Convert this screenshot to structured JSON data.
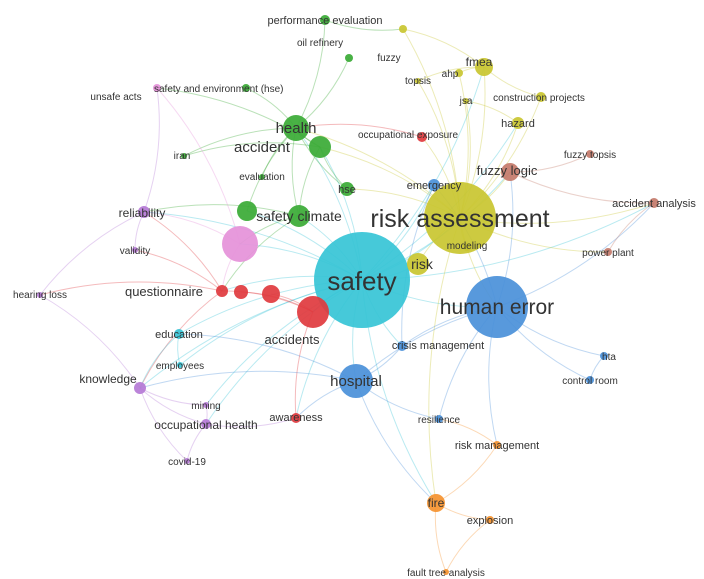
{
  "cluster_colors": {
    "cyan": "#36c4d6",
    "yellow": "#c9c630",
    "blue": "#4a90d9",
    "green": "#3aaa35",
    "red": "#e0393e",
    "purple": "#b57ad6",
    "orange": "#f5922f",
    "brown": "#c47a6a",
    "pink": "#e591d9"
  },
  "nodes": [
    {
      "id": "safety",
      "label": "safety",
      "cluster": "cyan",
      "weight": 10
    },
    {
      "id": "risk-assessment",
      "label": "risk assessment",
      "cluster": "yellow",
      "weight": 8
    },
    {
      "id": "human-error",
      "label": "human error",
      "cluster": "blue",
      "weight": 7
    },
    {
      "id": "hospital",
      "label": "hospital",
      "cluster": "blue",
      "weight": 4
    },
    {
      "id": "risk",
      "label": "risk",
      "cluster": "yellow",
      "weight": 3
    },
    {
      "id": "health",
      "label": "health",
      "cluster": "green",
      "weight": 3
    },
    {
      "id": "accident",
      "label": "accident",
      "cluster": "green",
      "weight": 3
    },
    {
      "id": "safety-climate",
      "label": "safety climate",
      "cluster": "green",
      "weight": 3
    },
    {
      "id": "accidents",
      "label": "accidents",
      "cluster": "red",
      "weight": 3
    },
    {
      "id": "fuzzy-logic",
      "label": "fuzzy logic",
      "cluster": "brown",
      "weight": 2
    },
    {
      "id": "fmea",
      "label": "fmea",
      "cluster": "yellow",
      "weight": 2
    },
    {
      "id": "fire",
      "label": "fire",
      "cluster": "orange",
      "weight": 2
    },
    {
      "id": "questionnaire",
      "label": "questionnaire",
      "cluster": "red",
      "weight": 2
    },
    {
      "id": "reliability",
      "label": "reliability",
      "cluster": "purple",
      "weight": 2
    },
    {
      "id": "knowledge",
      "label": "knowledge",
      "cluster": "purple",
      "weight": 2
    },
    {
      "id": "emergency",
      "label": "emergency",
      "cluster": "blue",
      "weight": 2
    },
    {
      "id": "hazard",
      "label": "hazard",
      "cluster": "yellow",
      "weight": 2
    },
    {
      "id": "occupational-health",
      "label": "occupational health",
      "cluster": "purple",
      "weight": 2
    },
    {
      "id": "education",
      "label": "education",
      "cluster": "cyan",
      "weight": 2
    },
    {
      "id": "crisis-management",
      "label": "crisis management",
      "cluster": "blue",
      "weight": 2
    },
    {
      "id": "accident-analysis",
      "label": "accident analysis",
      "cluster": "brown",
      "weight": 2
    },
    {
      "id": "performance-evaluation",
      "label": "performance evaluation",
      "cluster": "green",
      "weight": 1
    },
    {
      "id": "oil-refinery",
      "label": "oil refinery",
      "cluster": "green",
      "weight": 1
    },
    {
      "id": "fuzzy",
      "label": "fuzzy",
      "cluster": "yellow",
      "weight": 1
    },
    {
      "id": "topsis",
      "label": "topsis",
      "cluster": "yellow",
      "weight": 1
    },
    {
      "id": "ahp",
      "label": "ahp",
      "cluster": "yellow",
      "weight": 1
    },
    {
      "id": "safety-and-environment",
      "label": "safety and environment (hse)",
      "cluster": "green",
      "weight": 1
    },
    {
      "id": "unsafe-acts",
      "label": "unsafe acts",
      "cluster": "pink",
      "weight": 1
    },
    {
      "id": "jsa",
      "label": "jsa",
      "cluster": "yellow",
      "weight": 1
    },
    {
      "id": "construction-projects",
      "label": "construction projects",
      "cluster": "yellow",
      "weight": 1
    },
    {
      "id": "occupational-exposure",
      "label": "occupational exposure",
      "cluster": "red",
      "weight": 1
    },
    {
      "id": "iran",
      "label": "iran",
      "cluster": "green",
      "weight": 1
    },
    {
      "id": "fuzzy-topsis",
      "label": "fuzzy topsis",
      "cluster": "brown",
      "weight": 1
    },
    {
      "id": "evaluation",
      "label": "evaluation",
      "cluster": "green",
      "weight": 1
    },
    {
      "id": "hse",
      "label": "hse",
      "cluster": "green",
      "weight": 1
    },
    {
      "id": "validity",
      "label": "validity",
      "cluster": "purple",
      "weight": 1
    },
    {
      "id": "modeling",
      "label": "modeling",
      "cluster": "yellow",
      "weight": 1
    },
    {
      "id": "power-plant",
      "label": "power plant",
      "cluster": "brown",
      "weight": 1
    },
    {
      "id": "hearing-loss",
      "label": "hearing loss",
      "cluster": "purple",
      "weight": 1
    },
    {
      "id": "employees",
      "label": "employees",
      "cluster": "cyan",
      "weight": 1
    },
    {
      "id": "hta",
      "label": "hta",
      "cluster": "blue",
      "weight": 1
    },
    {
      "id": "control-room",
      "label": "control room",
      "cluster": "blue",
      "weight": 1
    },
    {
      "id": "mining",
      "label": "mining",
      "cluster": "purple",
      "weight": 1
    },
    {
      "id": "awareness",
      "label": "awareness",
      "cluster": "red",
      "weight": 1
    },
    {
      "id": "resilience",
      "label": "resilience",
      "cluster": "blue",
      "weight": 1
    },
    {
      "id": "risk-management",
      "label": "risk management",
      "cluster": "orange",
      "weight": 1
    },
    {
      "id": "covid-19",
      "label": "covid-19",
      "cluster": "purple",
      "weight": 1
    },
    {
      "id": "explosion",
      "label": "explosion",
      "cluster": "orange",
      "weight": 1
    },
    {
      "id": "fault-tree-analysis",
      "label": "fault tree analysis",
      "cluster": "orange",
      "weight": 1
    },
    {
      "id": "unlabeled-pink",
      "label": "",
      "cluster": "pink",
      "weight": 3
    },
    {
      "id": "unlabeled-red-a",
      "label": "",
      "cluster": "red",
      "weight": 2
    },
    {
      "id": "unlabeled-red-b",
      "label": "",
      "cluster": "red",
      "weight": 2
    },
    {
      "id": "unlabeled-green",
      "label": "",
      "cluster": "green",
      "weight": 2
    }
  ],
  "edges": [
    [
      "safety",
      "risk-assessment"
    ],
    [
      "safety",
      "human-error"
    ],
    [
      "safety",
      "hospital"
    ],
    [
      "safety",
      "risk"
    ],
    [
      "safety",
      "health"
    ],
    [
      "safety",
      "accident"
    ],
    [
      "safety",
      "safety-climate"
    ],
    [
      "safety",
      "accidents"
    ],
    [
      "safety",
      "questionnaire"
    ],
    [
      "safety",
      "knowledge"
    ],
    [
      "safety",
      "education"
    ],
    [
      "safety",
      "emergency"
    ],
    [
      "safety",
      "fire"
    ],
    [
      "safety",
      "fuzzy-logic"
    ],
    [
      "safety",
      "reliability"
    ],
    [
      "safety",
      "occupational-health"
    ],
    [
      "safety",
      "crisis-management"
    ],
    [
      "safety",
      "unlabeled-pink"
    ],
    [
      "safety",
      "awareness"
    ],
    [
      "safety",
      "fmea"
    ],
    [
      "safety",
      "hazard"
    ],
    [
      "safety",
      "accident-analysis"
    ],
    [
      "safety",
      "employees"
    ],
    [
      "safety",
      "mining"
    ],
    [
      "risk-assessment",
      "fmea"
    ],
    [
      "risk-assessment",
      "fuzzy-logic"
    ],
    [
      "risk-assessment",
      "hazard"
    ],
    [
      "risk-assessment",
      "ahp"
    ],
    [
      "risk-assessment",
      "jsa"
    ],
    [
      "risk-assessment",
      "risk"
    ],
    [
      "risk-assessment",
      "human-error"
    ],
    [
      "risk-assessment",
      "health"
    ],
    [
      "risk-assessment",
      "accident"
    ],
    [
      "risk-assessment",
      "construction-projects"
    ],
    [
      "risk-assessment",
      "fuzzy"
    ],
    [
      "risk-assessment",
      "topsis"
    ],
    [
      "risk-assessment",
      "power-plant"
    ],
    [
      "risk-assessment",
      "accident-analysis"
    ],
    [
      "risk-assessment",
      "hse"
    ],
    [
      "risk-assessment",
      "occupational-exposure"
    ],
    [
      "risk-assessment",
      "fire"
    ],
    [
      "risk-assessment",
      "modeling"
    ],
    [
      "human-error",
      "hta"
    ],
    [
      "human-error",
      "control-room"
    ],
    [
      "human-error",
      "hospital"
    ],
    [
      "human-error",
      "crisis-management"
    ],
    [
      "human-error",
      "emergency"
    ],
    [
      "human-error",
      "fuzzy-logic"
    ],
    [
      "human-error",
      "risk-management"
    ],
    [
      "human-error",
      "resilience"
    ],
    [
      "human-error",
      "accident-analysis"
    ],
    [
      "hospital",
      "crisis-management"
    ],
    [
      "hospital",
      "resilience"
    ],
    [
      "hospital",
      "education"
    ],
    [
      "hospital",
      "awareness"
    ],
    [
      "hospital",
      "fire"
    ],
    [
      "hospital",
      "knowledge"
    ],
    [
      "health",
      "accident"
    ],
    [
      "health",
      "safety-climate"
    ],
    [
      "health",
      "iran"
    ],
    [
      "health",
      "performance-evaluation"
    ],
    [
      "health",
      "oil-refinery"
    ],
    [
      "health",
      "hse"
    ],
    [
      "health",
      "safety-and-environment"
    ],
    [
      "health",
      "evaluation"
    ],
    [
      "accident",
      "iran"
    ],
    [
      "accident",
      "safety-climate"
    ],
    [
      "accident",
      "unsafe-acts"
    ],
    [
      "accident",
      "hse"
    ],
    [
      "safety-climate",
      "questionnaire"
    ],
    [
      "safety-climate",
      "reliability"
    ],
    [
      "safety-climate",
      "unlabeled-pink"
    ],
    [
      "accidents",
      "awareness"
    ],
    [
      "accidents",
      "questionnaire"
    ],
    [
      "accidents",
      "unlabeled-red-a"
    ],
    [
      "accidents",
      "unlabeled-red-b"
    ],
    [
      "questionnaire",
      "reliability"
    ],
    [
      "questionnaire",
      "validity"
    ],
    [
      "questionnaire",
      "hearing-loss"
    ],
    [
      "questionnaire",
      "knowledge"
    ],
    [
      "knowledge",
      "occupational-health"
    ],
    [
      "knowledge",
      "covid-19"
    ],
    [
      "knowledge",
      "mining"
    ],
    [
      "knowledge",
      "hearing-loss"
    ],
    [
      "reliability",
      "validity"
    ],
    [
      "reliability",
      "hearing-loss"
    ],
    [
      "reliability",
      "unsafe-acts"
    ],
    [
      "occupational-health",
      "covid-19"
    ],
    [
      "occupational-health",
      "mining"
    ],
    [
      "occupational-health",
      "awareness"
    ],
    [
      "fire",
      "explosion"
    ],
    [
      "fire",
      "fault-tree-analysis"
    ],
    [
      "fire",
      "risk-management"
    ],
    [
      "explosion",
      "fault-tree-analysis"
    ],
    [
      "risk-management",
      "resilience"
    ],
    [
      "fuzzy-logic",
      "fuzzy-topsis"
    ],
    [
      "fuzzy-logic",
      "accident-analysis"
    ],
    [
      "fmea",
      "ahp"
    ],
    [
      "fmea",
      "fuzzy"
    ],
    [
      "fmea",
      "topsis"
    ],
    [
      "fmea",
      "construction-projects"
    ],
    [
      "hazard",
      "jsa"
    ],
    [
      "education",
      "employees"
    ],
    [
      "education",
      "knowledge"
    ],
    [
      "emergency",
      "crisis-management"
    ],
    [
      "unlabeled-pink",
      "reliability"
    ],
    [
      "unlabeled-pink",
      "questionnaire"
    ],
    [
      "unlabeled-pink",
      "unsafe-acts"
    ],
    [
      "safety",
      "unlabeled-green"
    ],
    [
      "health",
      "unlabeled-green"
    ],
    [
      "accident-analysis",
      "power-plant"
    ],
    [
      "hta",
      "control-room"
    ],
    [
      "occupational-exposure",
      "health"
    ],
    [
      "performance-evaluation",
      "fuzzy"
    ]
  ]
}
